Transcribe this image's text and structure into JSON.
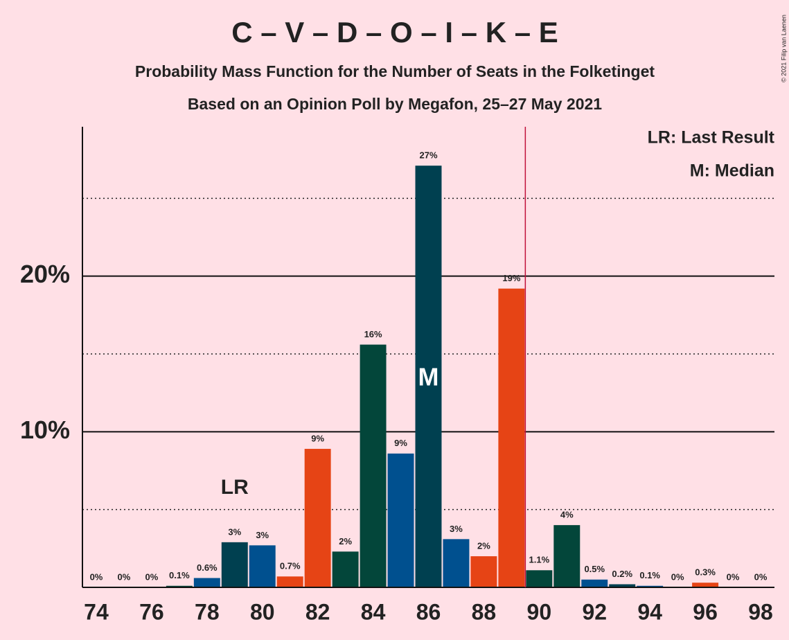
{
  "chart_data": {
    "type": "bar",
    "title": "C – V – D – O – I – K – E",
    "subtitle": "Probability Mass Function for the Number of Seats in the Folketinget",
    "subtitle2": "Based on an Opinion Poll by Megafon, 25–27 May 2021",
    "copyright": "© 2021 Filip van Laenen",
    "x": [
      74,
      75,
      76,
      77,
      78,
      79,
      80,
      81,
      82,
      83,
      84,
      85,
      86,
      87,
      88,
      89,
      90,
      91,
      92,
      93,
      94,
      95,
      96,
      97,
      98
    ],
    "values": [
      0,
      0,
      0,
      0.1,
      0.6,
      2.9,
      2.7,
      0.7,
      8.9,
      2.3,
      15.6,
      8.6,
      27.1,
      3.1,
      2.0,
      19.2,
      1.1,
      4.0,
      0.5,
      0.2,
      0.1,
      0,
      0.3,
      0,
      0
    ],
    "value_labels": [
      "0%",
      "0%",
      "0%",
      "0.1%",
      "0.6%",
      "3%",
      "3%",
      "0.7%",
      "9%",
      "2%",
      "16%",
      "9%",
      "27%",
      "3%",
      "2%",
      "19%",
      "1.1%",
      "4%",
      "0.5%",
      "0.2%",
      "0.1%",
      "0%",
      "0.3%",
      "0%",
      "0%"
    ],
    "colors": [
      "#E64415",
      "#E64415",
      "#03463A",
      "#03463A",
      "#00508F",
      "#004050",
      "#00508F",
      "#E64415",
      "#E64415",
      "#03463A",
      "#03463A",
      "#00508F",
      "#004050",
      "#00508F",
      "#E64415",
      "#E64415",
      "#03463A",
      "#03463A",
      "#00508F",
      "#004050",
      "#00508F",
      "#E64415",
      "#E64415",
      "#03463A",
      "#03463A"
    ],
    "xlim": [
      73.5,
      98.5
    ],
    "xticks": [
      74,
      76,
      78,
      80,
      82,
      84,
      86,
      88,
      90,
      92,
      94,
      96,
      98
    ],
    "ylim": [
      0,
      29.6
    ],
    "yticks": [
      {
        "value": 10,
        "label": "10%"
      },
      {
        "value": 20,
        "label": "20%"
      }
    ],
    "minor_yticks": [
      5,
      15,
      25
    ],
    "grid": true,
    "last_result": {
      "x": 79,
      "label": "LR"
    },
    "median": {
      "x": 86,
      "label": "M"
    },
    "majority_line": 89.5,
    "majority_color": "#C0103A",
    "legend_notes": [
      "LR: Last Result",
      "M: Median"
    ]
  }
}
